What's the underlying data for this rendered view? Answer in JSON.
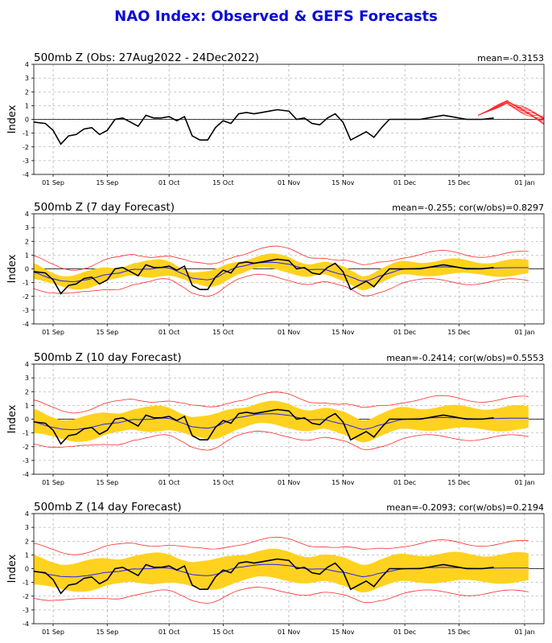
{
  "title": "NAO Index: Observed & GEFS Forecasts",
  "colors": {
    "title": "#0b0bd8",
    "observed": "#000000",
    "ensemble": "#ff2a2a",
    "band": "#ffd21f",
    "mean_line": "#2020ff",
    "grid": "#999999",
    "zero_line": "#000000"
  },
  "chart_data": [
    {
      "type": "line",
      "title": "500mb Z (Obs: 27Aug2022 - 24Dec2022)",
      "stat_label": "mean=-0.3153",
      "ylabel": "Index",
      "ylim": [
        -4,
        4
      ],
      "yticks": [
        -4,
        -3,
        -2,
        -1,
        0,
        1,
        2,
        3,
        4
      ],
      "xlim": [
        "2022-08-27",
        "2023-01-06"
      ],
      "xticks": [
        {
          "date": "2022-09-01",
          "label": "01 Sep"
        },
        {
          "date": "2022-09-15",
          "label": "15 Sep"
        },
        {
          "date": "2022-10-01",
          "label": "01 Oct"
        },
        {
          "date": "2022-10-15",
          "label": "15 Oct"
        },
        {
          "date": "2022-11-01",
          "label": "01 Nov"
        },
        {
          "date": "2022-11-15",
          "label": "15 Nov"
        },
        {
          "date": "2022-12-01",
          "label": "01 Dec"
        },
        {
          "date": "2022-12-15",
          "label": "15 Dec"
        },
        {
          "date": "2023-01-01",
          "label": "01 Jan"
        }
      ],
      "grid": true,
      "series": [
        {
          "role": "observed",
          "x": [
            "2022-08-27",
            "2022-08-30",
            "2022-09-01",
            "2022-09-03",
            "2022-09-05",
            "2022-09-07",
            "2022-09-09",
            "2022-09-11",
            "2022-09-13",
            "2022-09-15",
            "2022-09-17",
            "2022-09-19",
            "2022-09-21",
            "2022-09-23",
            "2022-09-25",
            "2022-09-27",
            "2022-09-29",
            "2022-10-01",
            "2022-10-03",
            "2022-10-05",
            "2022-10-07",
            "2022-10-09",
            "2022-10-11",
            "2022-10-13",
            "2022-10-15",
            "2022-10-17",
            "2022-10-19",
            "2022-10-21",
            "2022-10-23",
            "2022-10-25",
            "2022-10-27",
            "2022-10-29",
            "2022-11-01",
            "2022-11-03",
            "2022-11-05",
            "2022-11-07",
            "2022-11-09",
            "2022-11-11",
            "2022-11-13",
            "2022-11-15",
            "2022-11-17",
            "2022-11-19",
            "2022-11-21",
            "2022-11-23",
            "2022-11-25",
            "2022-11-27",
            "2022-11-29",
            "2022-12-01",
            "2022-12-03",
            "2022-12-05",
            "2022-12-07",
            "2022-12-09",
            "2022-12-11",
            "2022-12-13",
            "2022-12-15",
            "2022-12-17",
            "2022-12-19",
            "2022-12-21",
            "2022-12-24"
          ],
          "y": [
            -0.2,
            -0.3,
            -0.8,
            -1.8,
            -1.2,
            -1.1,
            -0.7,
            -0.6,
            -1.1,
            -0.8,
            0.0,
            0.1,
            -0.2,
            -0.5,
            0.3,
            0.1,
            0.1,
            0.2,
            -0.1,
            0.2,
            -1.2,
            -1.5,
            -1.5,
            -0.6,
            -0.1,
            -0.3,
            0.4,
            0.5,
            0.4,
            0.5,
            0.6,
            0.7,
            0.6,
            0.0,
            0.1,
            -0.3,
            -0.4,
            0.1,
            0.4,
            -0.2,
            -1.5,
            -1.2,
            -0.9,
            -1.3,
            -0.6,
            0.0,
            0.0,
            0.0,
            0.0,
            0.0,
            0.1,
            0.2,
            0.3,
            0.2,
            0.1,
            0.0,
            0.0,
            0.0,
            0.1
          ]
        }
      ],
      "ensemble_members": 10
    },
    {
      "type": "line",
      "title": "500mb Z (7 day Forecast)",
      "stat_label": "mean=-0.255; cor(w/obs)=0.8297",
      "ylabel": "Index",
      "ylim": [
        -4,
        4
      ],
      "yticks": [
        -4,
        -3,
        -2,
        -1,
        0,
        1,
        2,
        3,
        4
      ],
      "xlim": [
        "2022-08-27",
        "2023-01-06"
      ],
      "xticks": [
        {
          "date": "2022-09-01",
          "label": "01 Sep"
        },
        {
          "date": "2022-09-15",
          "label": "15 Sep"
        },
        {
          "date": "2022-10-01",
          "label": "01 Oct"
        },
        {
          "date": "2022-10-15",
          "label": "15 Oct"
        },
        {
          "date": "2022-11-01",
          "label": "01 Nov"
        },
        {
          "date": "2022-11-15",
          "label": "15 Nov"
        },
        {
          "date": "2022-12-01",
          "label": "01 Dec"
        },
        {
          "date": "2022-12-15",
          "label": "15 Dec"
        },
        {
          "date": "2023-01-01",
          "label": "01 Jan"
        }
      ],
      "grid": true,
      "band_spread": 0.5,
      "red_spread": 1.0
    },
    {
      "type": "line",
      "title": "500mb Z (10 day Forecast)",
      "stat_label": "mean=-0.2414; cor(w/obs)=0.5553",
      "ylabel": "Index",
      "ylim": [
        -4,
        4
      ],
      "yticks": [
        -4,
        -3,
        -2,
        -1,
        0,
        1,
        2,
        3,
        4
      ],
      "xlim": [
        "2022-08-27",
        "2023-01-06"
      ],
      "xticks": [
        {
          "date": "2022-09-01",
          "label": "01 Sep"
        },
        {
          "date": "2022-09-15",
          "label": "15 Sep"
        },
        {
          "date": "2022-10-01",
          "label": "01 Oct"
        },
        {
          "date": "2022-10-15",
          "label": "15 Oct"
        },
        {
          "date": "2022-11-01",
          "label": "01 Nov"
        },
        {
          "date": "2022-11-15",
          "label": "15 Nov"
        },
        {
          "date": "2022-12-01",
          "label": "01 Dec"
        },
        {
          "date": "2022-12-15",
          "label": "15 Dec"
        },
        {
          "date": "2023-01-01",
          "label": "01 Jan"
        }
      ],
      "grid": true,
      "band_spread": 0.8,
      "red_spread": 1.4
    },
    {
      "type": "line",
      "title": "500mb Z (14 day Forecast)",
      "stat_label": "mean=-0.2093; cor(w/obs)=0.2194",
      "ylabel": "Index",
      "ylim": [
        -4,
        4
      ],
      "yticks": [
        -4,
        -3,
        -2,
        -1,
        0,
        1,
        2,
        3,
        4
      ],
      "xlim": [
        "2022-08-27",
        "2023-01-06"
      ],
      "xticks": [
        {
          "date": "2022-09-01",
          "label": "01 Sep"
        },
        {
          "date": "2022-09-15",
          "label": "15 Sep"
        },
        {
          "date": "2022-10-01",
          "label": "01 Oct"
        },
        {
          "date": "2022-10-15",
          "label": "15 Oct"
        },
        {
          "date": "2022-11-01",
          "label": "01 Nov"
        },
        {
          "date": "2022-11-15",
          "label": "15 Nov"
        },
        {
          "date": "2022-12-01",
          "label": "01 Dec"
        },
        {
          "date": "2022-12-15",
          "label": "15 Dec"
        },
        {
          "date": "2023-01-01",
          "label": "01 Jan"
        }
      ],
      "grid": true,
      "band_spread": 1.0,
      "red_spread": 1.8
    }
  ]
}
